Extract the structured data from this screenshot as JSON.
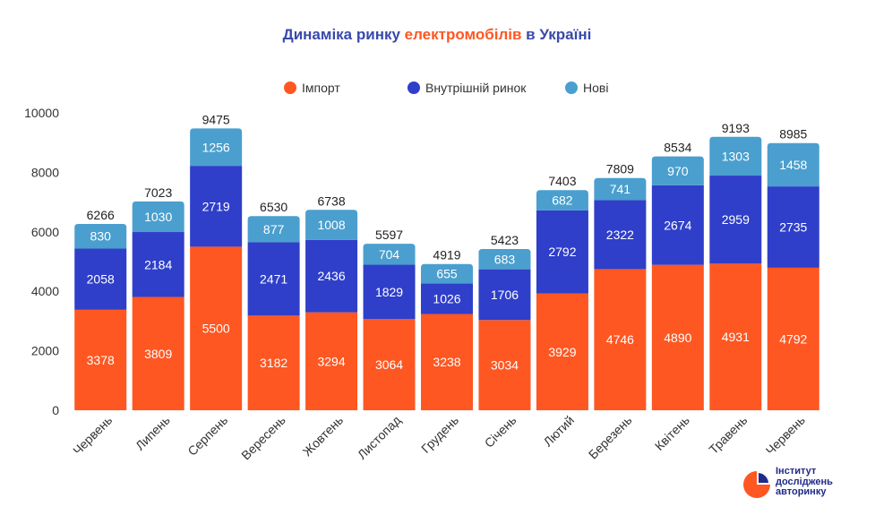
{
  "title": {
    "prefix": "Динаміка ринку ",
    "highlight": "електромобілів",
    "suffix": " в Україні"
  },
  "colors": {
    "import": "#fe5722",
    "domestic": "#2f3fc9",
    "new": "#4a9fce",
    "title_main": "#3949ab",
    "title_highlight": "#fe5722",
    "axis_text": "#333333",
    "grid": "#dddddd"
  },
  "logo": {
    "line1": "Інститут",
    "line2": "досліджень",
    "line3": "авторинку",
    "icon": "pie-chart-logo-icon"
  },
  "watermark_text": "Інститут досліджень авторинку",
  "chart_data": {
    "type": "bar",
    "stacked": true,
    "categories": [
      "Червень",
      "Липень",
      "Серпень",
      "Вересень",
      "Жовтень",
      "Листопад",
      "Грудень",
      "Січень",
      "Лютий",
      "Березень",
      "Квітень",
      "Травень",
      "Червень"
    ],
    "series": [
      {
        "name": "Імпорт",
        "values": [
          3378,
          3809,
          5500,
          3182,
          3294,
          3064,
          3238,
          3034,
          3929,
          4746,
          4890,
          4931,
          4792
        ]
      },
      {
        "name": "Внутрішній ринок",
        "values": [
          2058,
          2184,
          2719,
          2471,
          2436,
          1829,
          1026,
          1706,
          2792,
          2322,
          2674,
          2959,
          2735
        ]
      },
      {
        "name": "Нові",
        "values": [
          830,
          1030,
          1256,
          877,
          1008,
          704,
          655,
          683,
          682,
          741,
          970,
          1303,
          1458
        ]
      }
    ],
    "totals": [
      6266,
      7023,
      9475,
      6530,
      6738,
      5597,
      4919,
      5423,
      7403,
      7809,
      8534,
      9193,
      8985
    ],
    "ylim": [
      0,
      10000
    ],
    "yticks": [
      0,
      2000,
      4000,
      6000,
      8000,
      10000
    ],
    "grid": false,
    "legend_position": "top-center"
  }
}
